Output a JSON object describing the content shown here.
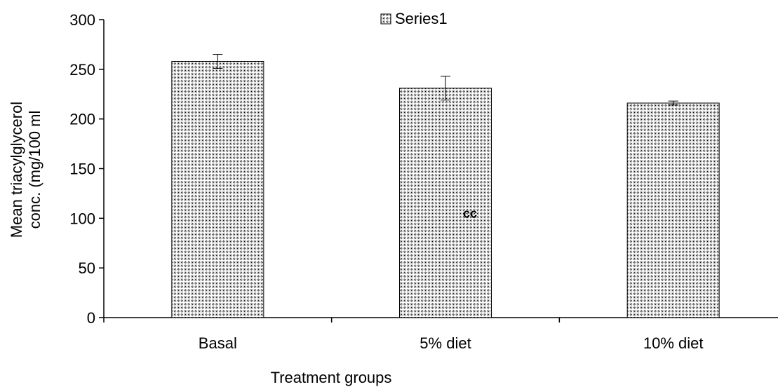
{
  "chart_data": {
    "type": "bar",
    "title": "",
    "xlabel": "Treatment groups",
    "ylabel_lines": [
      "Mean triacylglycerol",
      "conc. (mg/100 ml"
    ],
    "categories": [
      "Basal",
      "5% diet",
      "10% diet"
    ],
    "series": [
      {
        "name": "Series1",
        "values": [
          258,
          231,
          216
        ],
        "error": [
          7,
          12,
          2
        ]
      }
    ],
    "ylim": [
      0,
      300
    ],
    "yticks": [
      0,
      50,
      100,
      150,
      200,
      250,
      300
    ],
    "grid": false,
    "legend_position": "top-center",
    "annotations": [
      {
        "text": "cc",
        "category": "5% diet",
        "y": 105
      }
    ],
    "bar_pattern": "crosshatch",
    "colors": {
      "bar_stroke": "#000000",
      "bar_pattern": "#000000",
      "background": "#ffffff"
    }
  }
}
